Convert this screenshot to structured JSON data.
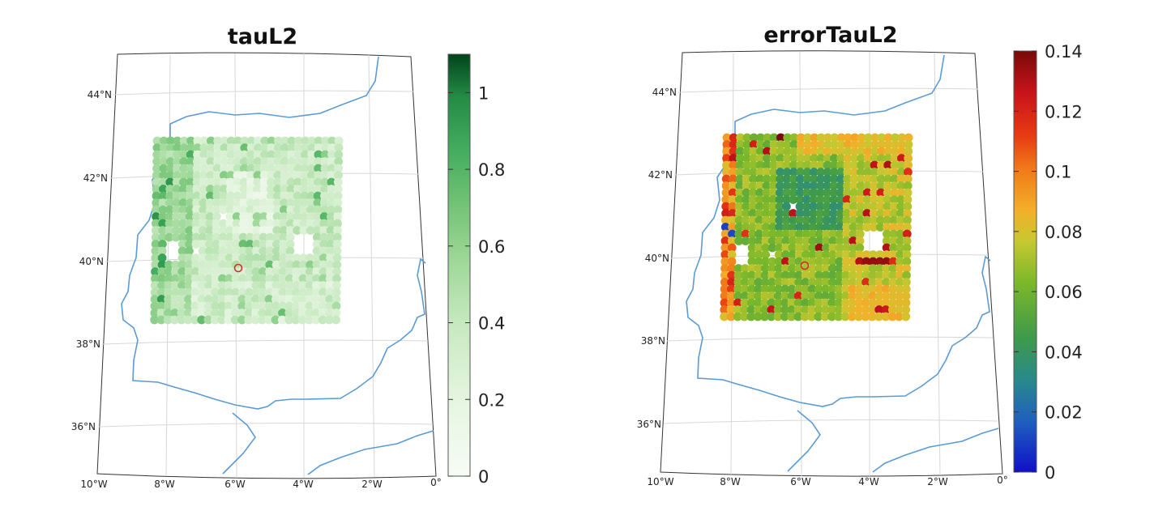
{
  "chart_data": [
    {
      "type": "scatter",
      "title": "tauL2",
      "colormap": "Greens",
      "colorbar": {
        "ticks": [
          "0",
          "0.2",
          "0.4",
          "0.6",
          "0.8",
          "1"
        ],
        "range": [
          0,
          1.1
        ]
      },
      "lat_ticks": [
        "44°N",
        "42°N",
        "40°N",
        "38°N",
        "36°N"
      ],
      "lon_ticks": [
        "10°W",
        "8°W",
        "6°W",
        "4°W",
        "2°W",
        "0°"
      ],
      "extent": {
        "lon": [
          -10,
          0
        ],
        "lat": [
          35,
          45
        ]
      },
      "grid": true,
      "coastline_color": "#5b9bd5",
      "marker": {
        "lon": -5.8,
        "lat": 39.8,
        "color": "#d62728"
      },
      "point_grid": {
        "lon": [
          -8.2,
          -2.8
        ],
        "lat": [
          38.6,
          42.9
        ],
        "spacing": 0.2
      },
      "value_range": [
        0.05,
        0.75
      ]
    },
    {
      "type": "scatter",
      "title": "errorTauL2",
      "colormap": "jet-like",
      "colorbar": {
        "ticks": [
          "0",
          "0.02",
          "0.04",
          "0.06",
          "0.08",
          "0.1",
          "0.12",
          "0.14"
        ],
        "range": [
          0,
          0.14
        ]
      },
      "lat_ticks": [
        "44°N",
        "42°N",
        "40°N",
        "38°N",
        "36°N"
      ],
      "lon_ticks": [
        "10°W",
        "8°W",
        "6°W",
        "4°W",
        "2°W",
        "0°"
      ],
      "extent": {
        "lon": [
          -10,
          0
        ],
        "lat": [
          35,
          45
        ]
      },
      "grid": true,
      "coastline_color": "#5b9bd5",
      "marker": {
        "lon": -5.8,
        "lat": 39.8,
        "color": "#d62728"
      },
      "point_grid": {
        "lon": [
          -8.2,
          -2.8
        ],
        "lat": [
          38.6,
          42.9
        ],
        "spacing": 0.2
      },
      "value_range": [
        0.01,
        0.135
      ]
    }
  ]
}
